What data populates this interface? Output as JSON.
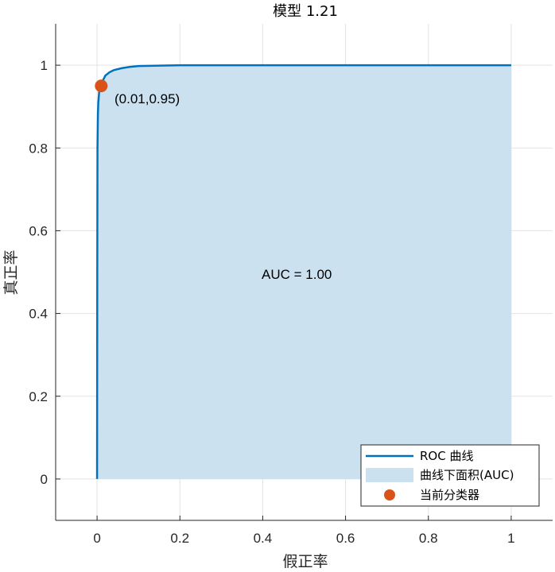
{
  "chart_data": {
    "type": "line",
    "title": "模型 1.21",
    "xlabel": "假正率",
    "ylabel": "真正率",
    "xlim": [
      -0.1,
      1.1
    ],
    "ylim": [
      -0.1,
      1.1
    ],
    "xticks": [
      0,
      0.2,
      0.4,
      0.6,
      0.8,
      1
    ],
    "yticks": [
      0,
      0.2,
      0.4,
      0.6,
      0.8,
      1
    ],
    "xtick_labels": [
      "0",
      "0.2",
      "0.4",
      "0.6",
      "0.8",
      "1"
    ],
    "ytick_labels": [
      "0",
      "0.2",
      "0.4",
      "0.6",
      "0.8",
      "1"
    ],
    "grid": true,
    "roc_curve": {
      "name": "ROC 曲线",
      "color": "#0072BD",
      "x": [
        0,
        0.0005,
        0.001,
        0.002,
        0.003,
        0.005,
        0.007,
        0.01,
        0.015,
        0.02,
        0.03,
        0.04,
        0.06,
        0.08,
        0.1,
        0.15,
        0.2,
        0.3,
        0.4,
        0.6,
        0.8,
        1
      ],
      "y": [
        0,
        0.5,
        0.8,
        0.88,
        0.91,
        0.935,
        0.945,
        0.955,
        0.965,
        0.975,
        0.983,
        0.988,
        0.993,
        0.996,
        0.998,
        0.999,
        1,
        1,
        1,
        1,
        1,
        1
      ]
    },
    "auc_area": {
      "name": "曲线下面积(AUC)",
      "color": "#CBE1F0"
    },
    "current_classifier": {
      "name": "当前分类器",
      "x": 0.01,
      "y": 0.95,
      "color": "#D95319",
      "label": "(0.01,0.95)"
    },
    "auc_annotation": "AUC = 1.00",
    "legend_position": "bottom-right"
  }
}
